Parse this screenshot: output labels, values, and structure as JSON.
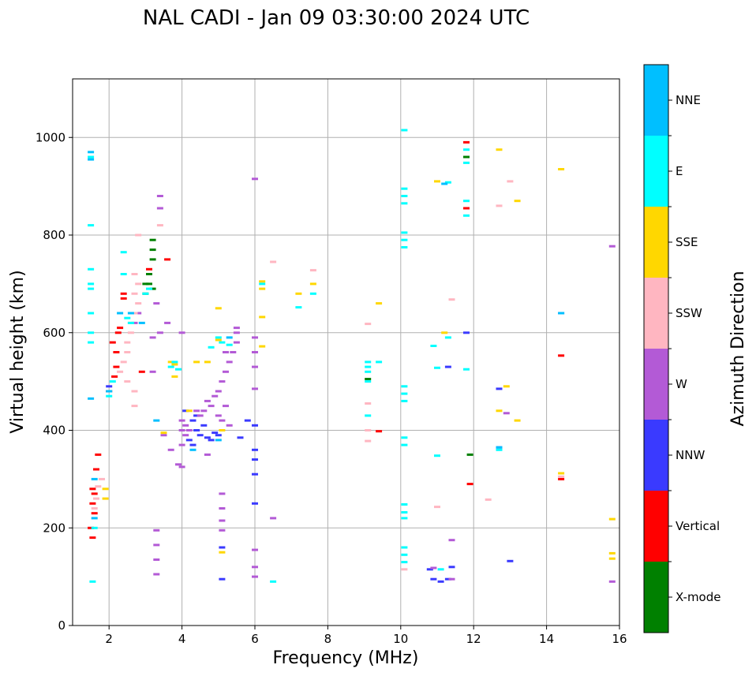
{
  "chart_data": {
    "type": "scatter",
    "title": "NAL CADI - Jan 09 03:30:00 2024 UTC",
    "xlabel": "Frequency (MHz)",
    "ylabel": "Virtual height (km)",
    "xlim": [
      1,
      16
    ],
    "ylim": [
      0,
      1120
    ],
    "xticks": [
      2,
      4,
      6,
      8,
      10,
      12,
      14,
      16
    ],
    "yticks": [
      0,
      200,
      400,
      600,
      800,
      1000
    ],
    "grid": true,
    "colorbar": {
      "label": "Azimuth Direction",
      "categories": [
        {
          "name": "X-mode",
          "color": "#008000"
        },
        {
          "name": "Vertical",
          "color": "#ff0000"
        },
        {
          "name": "NNW",
          "color": "#3a3aff"
        },
        {
          "name": "W",
          "color": "#b35ad6"
        },
        {
          "name": "SSW",
          "color": "#ffb6c1"
        },
        {
          "name": "SSE",
          "color": "#ffd700"
        },
        {
          "name": "E",
          "color": "#00ffff"
        },
        {
          "name": "NNE",
          "color": "#00bfff"
        }
      ]
    },
    "series": [
      {
        "name": "X-mode",
        "points": [
          [
            3.2,
            790
          ],
          [
            3.2,
            770
          ],
          [
            3.2,
            750
          ],
          [
            3.1,
            720
          ],
          [
            3.1,
            700
          ],
          [
            3.2,
            690
          ],
          [
            3.0,
            680
          ],
          [
            11.8,
            960
          ],
          [
            11.9,
            350
          ],
          [
            9.1,
            505
          ],
          [
            3.0,
            700
          ]
        ]
      },
      {
        "name": "Vertical",
        "points": [
          [
            1.55,
            250
          ],
          [
            1.6,
            270
          ],
          [
            1.55,
            280
          ],
          [
            1.6,
            230
          ],
          [
            1.5,
            200
          ],
          [
            1.55,
            180
          ],
          [
            1.65,
            320
          ],
          [
            1.7,
            350
          ],
          [
            2.2,
            530
          ],
          [
            2.2,
            560
          ],
          [
            2.25,
            600
          ],
          [
            2.3,
            610
          ],
          [
            2.4,
            670
          ],
          [
            2.4,
            680
          ],
          [
            3.1,
            730
          ],
          [
            3.6,
            750
          ],
          [
            2.1,
            580
          ],
          [
            2.0,
            480
          ],
          [
            11.8,
            990
          ],
          [
            11.8,
            855
          ],
          [
            11.9,
            290
          ],
          [
            14.4,
            300
          ],
          [
            14.4,
            553
          ],
          [
            9.4,
            398
          ],
          [
            2.9,
            520
          ],
          [
            2.15,
            510
          ]
        ]
      },
      {
        "name": "NNW",
        "points": [
          [
            4.2,
            380
          ],
          [
            4.3,
            370
          ],
          [
            4.4,
            400
          ],
          [
            4.5,
            390
          ],
          [
            4.7,
            385
          ],
          [
            4.8,
            380
          ],
          [
            4.9,
            395
          ],
          [
            5.0,
            390
          ],
          [
            4.3,
            420
          ],
          [
            4.4,
            430
          ],
          [
            4.6,
            410
          ],
          [
            5.6,
            385
          ],
          [
            5.8,
            420
          ],
          [
            6.0,
            410
          ],
          [
            6.0,
            360
          ],
          [
            6.0,
            340
          ],
          [
            6.0,
            310
          ],
          [
            6.0,
            250
          ],
          [
            5.1,
            160
          ],
          [
            5.1,
            95
          ],
          [
            10.8,
            115
          ],
          [
            10.9,
            95
          ],
          [
            11.1,
            90
          ],
          [
            11.3,
            95
          ],
          [
            12.7,
            485
          ],
          [
            12.7,
            365
          ],
          [
            13.0,
            132
          ],
          [
            11.8,
            600
          ],
          [
            11.3,
            530
          ],
          [
            11.4,
            120
          ],
          [
            2.0,
            490
          ],
          [
            4.1,
            440
          ]
        ]
      },
      {
        "name": "W",
        "points": [
          [
            4.0,
            420
          ],
          [
            4.1,
            410
          ],
          [
            4.0,
            400
          ],
          [
            4.1,
            390
          ],
          [
            4.2,
            400
          ],
          [
            4.0,
            370
          ],
          [
            4.4,
            440
          ],
          [
            4.5,
            430
          ],
          [
            4.6,
            440
          ],
          [
            4.7,
            460
          ],
          [
            4.8,
            450
          ],
          [
            4.9,
            470
          ],
          [
            5.0,
            480
          ],
          [
            5.1,
            500
          ],
          [
            5.2,
            520
          ],
          [
            5.3,
            540
          ],
          [
            5.4,
            560
          ],
          [
            5.5,
            580
          ],
          [
            5.5,
            600
          ],
          [
            5.5,
            610
          ],
          [
            5.2,
            560
          ],
          [
            5.2,
            450
          ],
          [
            5.1,
            420
          ],
          [
            5.3,
            410
          ],
          [
            5.0,
            430
          ],
          [
            4.7,
            350
          ],
          [
            4.0,
            325
          ],
          [
            3.9,
            330
          ],
          [
            3.7,
            360
          ],
          [
            3.5,
            390
          ],
          [
            3.6,
            620
          ],
          [
            3.2,
            590
          ],
          [
            3.2,
            520
          ],
          [
            3.4,
            600
          ],
          [
            3.3,
            660
          ],
          [
            3.4,
            880
          ],
          [
            3.4,
            855
          ],
          [
            3.3,
            195
          ],
          [
            3.3,
            165
          ],
          [
            3.3,
            135
          ],
          [
            3.3,
            105
          ],
          [
            5.1,
            270
          ],
          [
            5.1,
            240
          ],
          [
            5.1,
            215
          ],
          [
            5.1,
            195
          ],
          [
            6.0,
            915
          ],
          [
            6.0,
            590
          ],
          [
            6.0,
            560
          ],
          [
            6.0,
            530
          ],
          [
            6.0,
            485
          ],
          [
            6.0,
            155
          ],
          [
            6.0,
            120
          ],
          [
            6.0,
            100
          ],
          [
            6.5,
            220
          ],
          [
            10.9,
            118
          ],
          [
            11.4,
            95
          ],
          [
            11.4,
            175
          ],
          [
            12.9,
            435
          ],
          [
            14.4,
            640
          ],
          [
            15.8,
            777
          ],
          [
            15.8,
            90
          ],
          [
            2.8,
            640
          ],
          [
            2.7,
            620
          ],
          [
            4.0,
            600
          ]
        ]
      },
      {
        "name": "SSW",
        "points": [
          [
            1.7,
            285
          ],
          [
            1.8,
            300
          ],
          [
            1.65,
            260
          ],
          [
            1.6,
            240
          ],
          [
            2.5,
            560
          ],
          [
            2.5,
            580
          ],
          [
            2.6,
            600
          ],
          [
            2.6,
            620
          ],
          [
            2.7,
            640
          ],
          [
            2.8,
            660
          ],
          [
            2.7,
            680
          ],
          [
            2.8,
            700
          ],
          [
            2.7,
            720
          ],
          [
            2.8,
            800
          ],
          [
            3.4,
            820
          ],
          [
            2.4,
            540
          ],
          [
            2.3,
            520
          ],
          [
            2.5,
            500
          ],
          [
            2.7,
            480
          ],
          [
            2.7,
            450
          ],
          [
            6.5,
            745
          ],
          [
            7.6,
            728
          ],
          [
            9.1,
            618
          ],
          [
            9.1,
            400
          ],
          [
            9.1,
            378
          ],
          [
            9.1,
            455
          ],
          [
            10.1,
            115
          ],
          [
            11.0,
            243
          ],
          [
            11.4,
            668
          ],
          [
            12.4,
            258
          ],
          [
            12.7,
            860
          ],
          [
            13.0,
            910
          ],
          [
            14.4,
            305
          ]
        ]
      },
      {
        "name": "SSE",
        "points": [
          [
            3.5,
            395
          ],
          [
            3.8,
            510
          ],
          [
            3.8,
            535
          ],
          [
            3.7,
            540
          ],
          [
            4.4,
            540
          ],
          [
            4.7,
            540
          ],
          [
            5.0,
            585
          ],
          [
            5.0,
            650
          ],
          [
            5.1,
            400
          ],
          [
            5.1,
            150
          ],
          [
            6.2,
            705
          ],
          [
            6.2,
            690
          ],
          [
            6.2,
            632
          ],
          [
            6.2,
            572
          ],
          [
            7.6,
            700
          ],
          [
            7.2,
            680
          ],
          [
            9.4,
            660
          ],
          [
            11.0,
            910
          ],
          [
            11.2,
            600
          ],
          [
            12.7,
            975
          ],
          [
            12.7,
            440
          ],
          [
            12.9,
            490
          ],
          [
            13.2,
            420
          ],
          [
            13.2,
            870
          ],
          [
            14.4,
            935
          ],
          [
            14.4,
            312
          ],
          [
            15.8,
            218
          ],
          [
            15.8,
            148
          ],
          [
            15.8,
            137
          ],
          [
            1.9,
            280
          ],
          [
            1.9,
            260
          ],
          [
            4.2,
            440
          ]
        ]
      },
      {
        "name": "E",
        "points": [
          [
            1.5,
            820
          ],
          [
            1.5,
            730
          ],
          [
            1.5,
            700
          ],
          [
            1.5,
            690
          ],
          [
            1.5,
            640
          ],
          [
            1.5,
            600
          ],
          [
            1.5,
            580
          ],
          [
            1.55,
            90
          ],
          [
            2.0,
            470
          ],
          [
            2.1,
            500
          ],
          [
            2.4,
            720
          ],
          [
            2.4,
            765
          ],
          [
            2.5,
            630
          ],
          [
            2.6,
            620
          ],
          [
            3.0,
            680
          ],
          [
            3.1,
            690
          ],
          [
            3.7,
            530
          ],
          [
            3.8,
            540
          ],
          [
            3.9,
            525
          ],
          [
            4.8,
            570
          ],
          [
            5.0,
            590
          ],
          [
            5.1,
            580
          ],
          [
            5.3,
            575
          ],
          [
            6.2,
            700
          ],
          [
            6.5,
            90
          ],
          [
            7.2,
            652
          ],
          [
            7.6,
            680
          ],
          [
            9.1,
            540
          ],
          [
            9.1,
            530
          ],
          [
            9.1,
            520
          ],
          [
            9.1,
            500
          ],
          [
            9.1,
            430
          ],
          [
            9.4,
            540
          ],
          [
            10.1,
            1015
          ],
          [
            10.1,
            895
          ],
          [
            10.1,
            880
          ],
          [
            10.1,
            865
          ],
          [
            10.1,
            805
          ],
          [
            10.1,
            790
          ],
          [
            10.1,
            775
          ],
          [
            10.1,
            490
          ],
          [
            10.1,
            475
          ],
          [
            10.1,
            460
          ],
          [
            10.1,
            385
          ],
          [
            10.1,
            370
          ],
          [
            10.1,
            248
          ],
          [
            10.1,
            232
          ],
          [
            10.1,
            220
          ],
          [
            10.1,
            160
          ],
          [
            10.1,
            145
          ],
          [
            10.1,
            130
          ],
          [
            10.9,
            573
          ],
          [
            11.0,
            528
          ],
          [
            11.0,
            348
          ],
          [
            11.1,
            115
          ],
          [
            11.3,
            908
          ],
          [
            11.3,
            590
          ],
          [
            11.8,
            975
          ],
          [
            11.8,
            948
          ],
          [
            11.8,
            870
          ],
          [
            11.8,
            840
          ],
          [
            11.8,
            525
          ],
          [
            12.7,
            360
          ],
          [
            1.5,
            960
          ],
          [
            1.6,
            200
          ]
        ]
      },
      {
        "name": "NNE",
        "points": [
          [
            1.5,
            970
          ],
          [
            1.5,
            955
          ],
          [
            1.5,
            465
          ],
          [
            1.6,
            300
          ],
          [
            1.6,
            220
          ],
          [
            2.0,
            480
          ],
          [
            2.3,
            640
          ],
          [
            2.6,
            640
          ],
          [
            2.9,
            620
          ],
          [
            3.3,
            420
          ],
          [
            4.3,
            360
          ],
          [
            5.0,
            380
          ],
          [
            5.3,
            590
          ],
          [
            11.2,
            905
          ],
          [
            12.7,
            365
          ],
          [
            14.4,
            640
          ]
        ]
      }
    ]
  }
}
